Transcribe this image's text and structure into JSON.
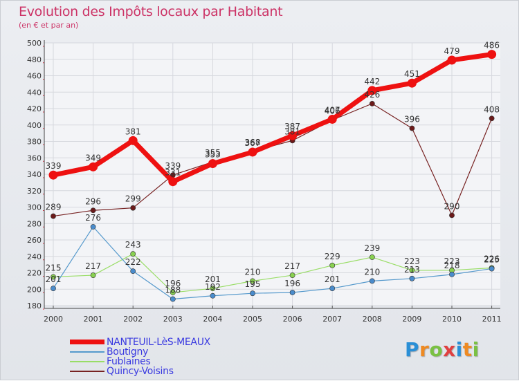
{
  "chart_data": {
    "type": "line",
    "title": "Evolution des Impôts locaux par Habitant",
    "subtitle": "(en € et par an)",
    "xlabel": "",
    "ylabel": "",
    "ylim": [
      180,
      500
    ],
    "yticks": [
      "180",
      "200",
      "220",
      "240",
      "260",
      "280",
      "300",
      "320",
      "340",
      "360",
      "380",
      "400",
      "420",
      "440",
      "460",
      "480",
      "500"
    ],
    "categories": [
      "2000",
      "2001",
      "2002",
      "2003",
      "2004",
      "2005",
      "2006",
      "2007",
      "2008",
      "2009",
      "2010",
      "2011"
    ],
    "series": [
      {
        "name": "NANTEUIL-LèS-MEAUX",
        "color": "#ee1111",
        "values": [
          339,
          349,
          381,
          331,
          353,
          367,
          387,
          407,
          442,
          451,
          479,
          486
        ]
      },
      {
        "name": "Boutigny",
        "color": "#5599cc",
        "values": [
          201,
          276,
          222,
          188,
          192,
          195,
          196,
          201,
          210,
          213,
          218,
          225
        ]
      },
      {
        "name": "Fublaines",
        "color": "#99dd66",
        "values": [
          215,
          217,
          243,
          196,
          201,
          210,
          217,
          229,
          239,
          223,
          223,
          226
        ]
      },
      {
        "name": "Quincy-Voisins",
        "color": "#772222",
        "values": [
          289,
          296,
          299,
          339,
          355,
          368,
          381,
          406,
          426,
          396,
          290,
          408
        ]
      }
    ],
    "grid": true,
    "legend": "bottom-left"
  },
  "brand": {
    "letters": [
      "P",
      "r",
      "o",
      "x",
      "i",
      "t",
      "i"
    ],
    "colors": [
      "#2a8fd6",
      "#ee8a22",
      "#7ac143",
      "#e04040",
      "#2a8fd6",
      "#ee8a22",
      "#7ac143"
    ]
  }
}
